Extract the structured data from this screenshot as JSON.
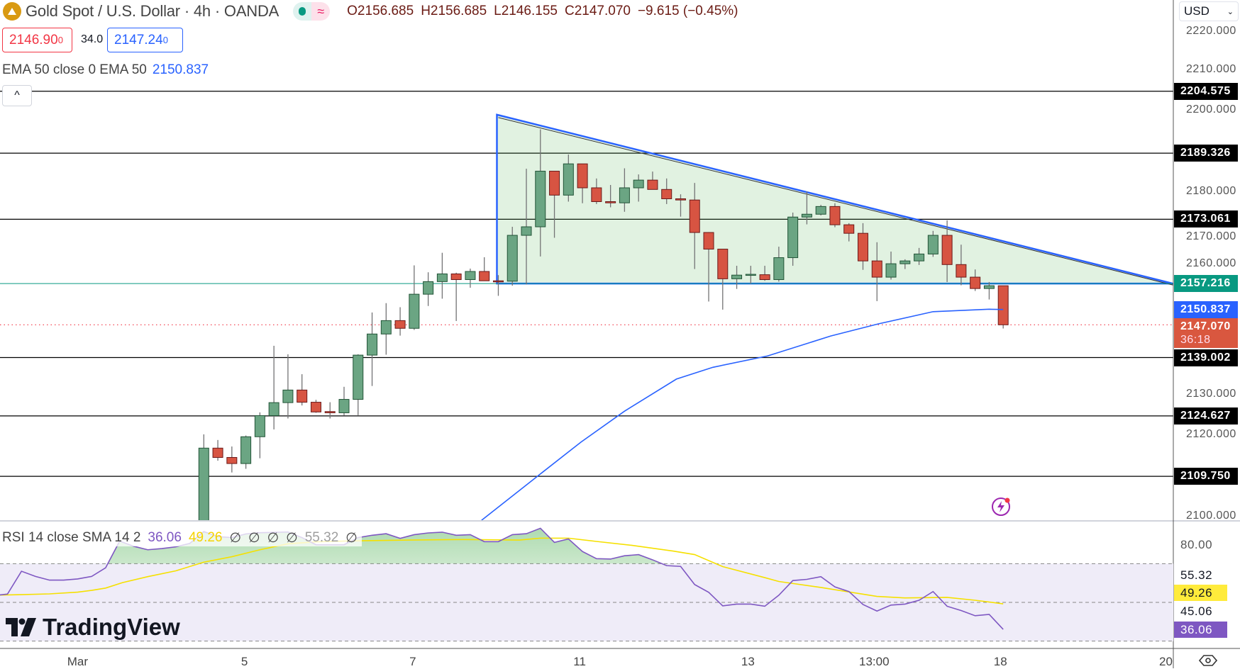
{
  "header": {
    "title": "Gold Spot / U.S. Dollar · 4h · OANDA",
    "open": "O2156.685",
    "high": "H2156.685",
    "low": "L2146.155",
    "close": "C2147.070",
    "change": "−9.615 (−0.45%)",
    "badge_icon": "≈"
  },
  "quote": {
    "bid": "2146.90",
    "bid_sup": "0",
    "spread": "34.0",
    "ask": "2147.24",
    "ask_sup": "0"
  },
  "ema": {
    "label": "EMA 50 close 0 EMA 50",
    "value": "2150.837"
  },
  "collapse_icon": "^",
  "currency": {
    "selected": "USD"
  },
  "rsi": {
    "label": "RSI 14 close SMA 14 2",
    "value": "36.06",
    "ma": "49.26",
    "nulls": [
      "∅",
      "∅",
      "∅",
      "∅"
    ],
    "upper": "55.32",
    "null_last": "∅"
  },
  "brand": {
    "name": "TradingView"
  },
  "price_axis": {
    "labels": [
      "2220.000",
      "2210.000",
      "2200.000",
      "2180.000",
      "2170.000",
      "2160.000",
      "2130.000",
      "2120.000",
      "2100.000"
    ],
    "values": [
      2220,
      2210,
      2200,
      2180,
      2170,
      2160,
      2130,
      2120,
      2100
    ]
  },
  "level_tags": [
    {
      "value": "2204.575"
    },
    {
      "value": "2189.326"
    },
    {
      "value": "2173.061"
    },
    {
      "value": "2139.002"
    },
    {
      "value": "2124.627"
    },
    {
      "value": "2109.750"
    }
  ],
  "tags": {
    "support": "2157.216",
    "ema": "2150.837",
    "last": "2147.070",
    "countdown": "36:18"
  },
  "rsi_axis": {
    "top": "80.00",
    "upper": "55.32",
    "ma": "49.26",
    "lower": "45.06",
    "rsi": "36.06"
  },
  "time_axis": [
    {
      "label": "Mar",
      "i": -9
    },
    {
      "label": "5",
      "i": 2.9
    },
    {
      "label": "7",
      "i": 14.9
    },
    {
      "label": "11",
      "i": 26.8
    },
    {
      "label": "13",
      "i": 38.8
    },
    {
      "label": "13:00",
      "i": 47.8
    },
    {
      "label": "18",
      "i": 56.8
    },
    {
      "label": "20",
      "i": 68.6
    }
  ],
  "colors": {
    "up": "#6ba583",
    "up_border": "#225437",
    "down": "#d75442",
    "down_border": "#6b1a1a",
    "ema": "#2962ff",
    "support": "#089981",
    "last": "#d9573f",
    "rsi": "#7e57c2",
    "rsi_ma": "#ffeb3b"
  },
  "chart_data": {
    "type": "candlestick",
    "symbol": "XAUUSD",
    "timeframe": "4h",
    "ylim": [
      2098.8,
      2227.0
    ],
    "candles": [
      [
        2095,
        2120.1,
        2093,
        2116.7
      ],
      [
        2116.7,
        2118.7,
        2113.6,
        2114.4
      ],
      [
        2114.4,
        2117.1,
        2110.7,
        2112.9
      ],
      [
        2112.9,
        2119.8,
        2111.6,
        2119.5
      ],
      [
        2119.5,
        2125.5,
        2114.2,
        2124.7
      ],
      [
        2124.7,
        2141.9,
        2121.3,
        2127.9
      ],
      [
        2127.9,
        2139.8,
        2124.0,
        2131.0
      ],
      [
        2131.0,
        2134.9,
        2127.2,
        2128.0
      ],
      [
        2128.0,
        2128.6,
        2125.4,
        2125.6
      ],
      [
        2125.7,
        2128.0,
        2124.0,
        2125.4
      ],
      [
        2125.4,
        2131.8,
        2124.7,
        2128.7
      ],
      [
        2128.7,
        2139.8,
        2124.8,
        2139.6
      ],
      [
        2139.6,
        2150.1,
        2132.0,
        2144.8
      ],
      [
        2144.8,
        2152.4,
        2139.7,
        2148.1
      ],
      [
        2148.1,
        2151.4,
        2144.4,
        2146.2
      ],
      [
        2146.2,
        2161.7,
        2145.8,
        2154.6
      ],
      [
        2154.6,
        2160.0,
        2151.7,
        2157.7
      ],
      [
        2157.7,
        2164.8,
        2153.5,
        2159.6
      ],
      [
        2159.6,
        2159.9,
        2148.0,
        2158.2
      ],
      [
        2158.2,
        2160.9,
        2156.2,
        2160.2
      ],
      [
        2160.2,
        2163.7,
        2157.9,
        2157.9
      ],
      [
        2157.9,
        2159.3,
        2154.2,
        2157.8
      ],
      [
        2157.8,
        2171.2,
        2156.7,
        2169.1
      ],
      [
        2169.1,
        2185.5,
        2157.0,
        2171.2
      ],
      [
        2171.2,
        2195.2,
        2163.9,
        2184.9
      ],
      [
        2184.9,
        2184.9,
        2168.5,
        2179.0
      ],
      [
        2179.0,
        2189.0,
        2177.4,
        2186.7
      ],
      [
        2186.7,
        2186.7,
        2177.0,
        2180.8
      ],
      [
        2180.8,
        2183.1,
        2176.8,
        2177.4
      ],
      [
        2177.4,
        2181.5,
        2176.0,
        2177.1
      ],
      [
        2177.1,
        2185.6,
        2174.9,
        2180.8
      ],
      [
        2180.8,
        2184.1,
        2177.4,
        2182.7
      ],
      [
        2182.7,
        2184.8,
        2180.4,
        2180.4
      ],
      [
        2180.4,
        2183.1,
        2176.8,
        2178.1
      ],
      [
        2178.1,
        2179.2,
        2173.7,
        2177.8
      ],
      [
        2177.8,
        2182.0,
        2160.8,
        2169.8
      ],
      [
        2169.8,
        2169.9,
        2152.8,
        2165.7
      ],
      [
        2165.7,
        2165.7,
        2150.8,
        2158.4
      ],
      [
        2158.4,
        2161.6,
        2155.9,
        2159.3
      ],
      [
        2159.4,
        2161.6,
        2157.2,
        2159.5
      ],
      [
        2159.4,
        2161.6,
        2157.9,
        2158.2
      ],
      [
        2158.2,
        2166.3,
        2157.7,
        2163.6
      ],
      [
        2163.6,
        2174.7,
        2161.6,
        2173.6
      ],
      [
        2173.6,
        2179.9,
        2171.8,
        2174.3
      ],
      [
        2174.3,
        2176.6,
        2174.0,
        2176.2
      ],
      [
        2176.2,
        2177.0,
        2171.1,
        2171.7
      ],
      [
        2171.7,
        2172.1,
        2167.6,
        2169.6
      ],
      [
        2169.6,
        2172.1,
        2160.6,
        2162.8
      ],
      [
        2162.8,
        2167.4,
        2152.9,
        2158.8
      ],
      [
        2158.8,
        2165.1,
        2158.2,
        2162.1
      ],
      [
        2162.1,
        2163.2,
        2160.8,
        2162.8
      ],
      [
        2162.8,
        2166.0,
        2161.8,
        2164.5
      ],
      [
        2164.5,
        2170.2,
        2163.8,
        2169.1
      ],
      [
        2169.1,
        2172.8,
        2157.6,
        2161.9
      ],
      [
        2161.9,
        2166.8,
        2156.8,
        2158.8
      ],
      [
        2158.8,
        2160.7,
        2155.4,
        2156.0
      ],
      [
        2156.0,
        2157.6,
        2153.3,
        2156.7
      ],
      [
        2156.685,
        2156.685,
        2146.155,
        2147.07
      ]
    ],
    "ema50": [
      [
        19.8,
        2098.9
      ],
      [
        23.8,
        2109.8
      ],
      [
        26.9,
        2118.2
      ],
      [
        30,
        2125.8
      ],
      [
        33.7,
        2133.7
      ],
      [
        36.3,
        2136.6
      ],
      [
        40.2,
        2139.4
      ],
      [
        44.7,
        2144.3
      ],
      [
        48.1,
        2147.3
      ],
      [
        52,
        2150.3
      ],
      [
        56,
        2150.9
      ],
      [
        57,
        2150.837
      ]
    ],
    "levels": [
      2204.575,
      2189.326,
      2173.061,
      2139.002,
      2124.627,
      2109.75
    ],
    "support": 2157.216,
    "last": 2147.07,
    "triangle": {
      "apex_i": 20.9,
      "apex_price": 2198.8,
      "base_price": 2157.216,
      "end_i": 69.1
    },
    "rsi": {
      "ylim": [
        0,
        100
      ],
      "bands": [
        70,
        50,
        30
      ],
      "start_i": -15,
      "values": [
        53.5,
        54.3,
        66.1,
        63.4,
        61.5,
        61.5,
        62.1,
        63.4,
        67.9,
        81.7,
        79,
        77.2,
        77.8,
        78.7,
        80.5,
        86.6,
        84,
        83.5,
        85.4,
        86,
        86.2,
        86.4,
        83.5,
        79.8,
        79.8,
        79.8,
        83.5,
        84.7,
        85.5,
        83.1,
        85,
        85.9,
        86.3,
        84.7,
        85,
        81.4,
        81.4,
        85,
        85.5,
        88.3,
        81,
        82.8,
        76.3,
        72.6,
        72.4,
        74.1,
        74.7,
        72.0,
        69.0,
        68.6,
        59.2,
        55.2,
        48.2,
        49.1,
        49.1,
        48.0,
        53.7,
        61.3,
        61.9,
        63.3,
        58.0,
        55.6,
        48.9,
        45.5,
        48.6,
        49.1,
        51.1,
        55.6,
        48.0,
        45.8,
        43.1,
        43.8,
        36.06
      ],
      "ma": [
        [
          -15,
          53.7
        ],
        [
          -13,
          54
        ],
        [
          -11,
          54.4
        ],
        [
          -9,
          55.3
        ],
        [
          -8,
          56.2
        ],
        [
          -7,
          57.4
        ],
        [
          -5.8,
          60.2
        ],
        [
          -4,
          63.3
        ],
        [
          -2,
          66.3
        ],
        [
          0,
          70.8
        ],
        [
          2,
          73.6
        ],
        [
          4,
          77.2
        ],
        [
          6,
          80.3
        ],
        [
          8,
          81.3
        ],
        [
          10.6,
          81.8
        ],
        [
          14.6,
          82.2
        ],
        [
          18.5,
          82.5
        ],
        [
          22.5,
          82.2
        ],
        [
          24,
          83.2
        ],
        [
          26,
          83.2
        ],
        [
          28,
          81.5
        ],
        [
          30.5,
          79.5
        ],
        [
          33.5,
          76.5
        ],
        [
          35,
          74.7
        ],
        [
          37,
          68.5
        ],
        [
          40,
          62.8
        ],
        [
          41,
          60.8
        ],
        [
          44,
          57.7
        ],
        [
          48,
          53.1
        ],
        [
          50,
          52.3
        ],
        [
          53,
          52.6
        ],
        [
          55,
          51.1
        ],
        [
          57,
          49.26
        ]
      ]
    }
  }
}
